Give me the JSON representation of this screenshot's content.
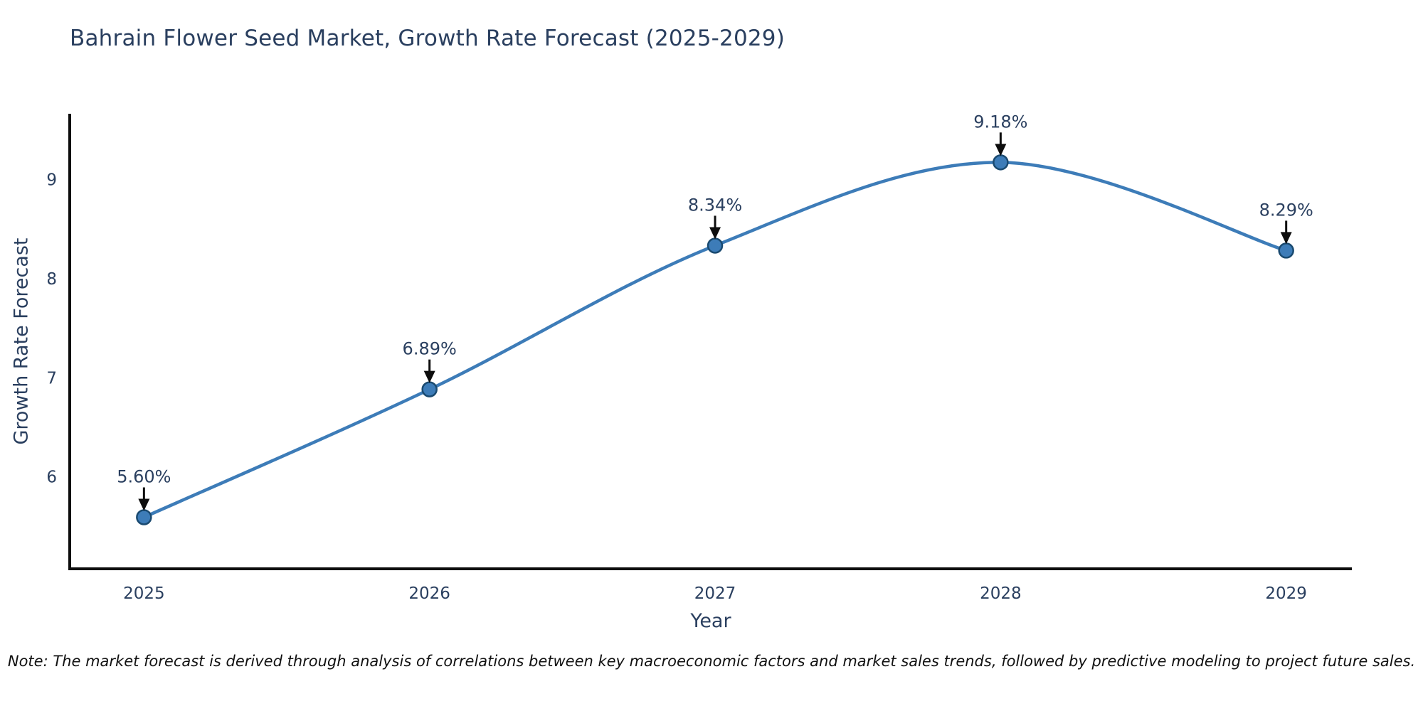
{
  "note": "Note: The market forecast is derived through analysis of correlations between key macroeconomic factors and market sales trends, followed by predictive modeling to project future sales.",
  "colors": {
    "line": "#3d7cb8",
    "marker_fill": "#3d7cb8",
    "marker_stroke": "#1a4a70",
    "axis": "#0d0d0d",
    "tick_text": "#2a3f5f",
    "annotation_text": "#2a3f5f",
    "arrow": "#0d0d0d",
    "background": "#ffffff"
  },
  "chart_data": {
    "type": "line",
    "title": "Bahrain Flower Seed Market, Growth Rate Forecast (2025-2029)",
    "xlabel": "Year",
    "ylabel": "Growth Rate Forecast",
    "x": [
      2025,
      2026,
      2027,
      2028,
      2029
    ],
    "values": [
      5.6,
      6.89,
      8.34,
      9.18,
      8.29
    ],
    "point_labels": [
      "5.60%",
      "6.89%",
      "8.34%",
      "9.18%",
      "8.29%"
    ],
    "xticks": [
      "2025",
      "2026",
      "2027",
      "2028",
      "2029"
    ],
    "yticks": [
      6,
      7,
      8,
      9
    ],
    "xlim": [
      2024.74,
      2029.23
    ],
    "ylim": [
      5.08,
      9.67
    ],
    "line_shape": "spline",
    "grid": false,
    "legend": "none",
    "annotation_arrows": true
  }
}
